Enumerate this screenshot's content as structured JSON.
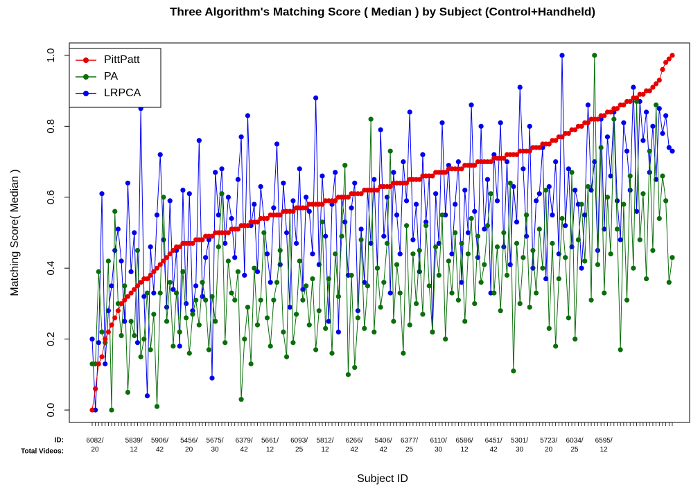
{
  "chart_data": {
    "type": "line",
    "title": "Three Algorithm's Matching Score ( Median ) by Subject  (Control+Handheld)",
    "x_label": "Subject ID",
    "y_label": "Matching Score( Median )",
    "category_header": [
      "ID:",
      "Total Videos:"
    ],
    "legend": "topleft",
    "ylim": [
      -0.035,
      1.035
    ],
    "yticks": [
      {
        "value": 0,
        "label": "0.0"
      },
      0.2,
      0.4,
      0.6,
      0.8,
      {
        "value": 1,
        "label": "1.0"
      }
    ],
    "categories": [
      "6082/\n20",
      null,
      null,
      null,
      null,
      null,
      null,
      null,
      null,
      null,
      null,
      null,
      "5839/\n12",
      null,
      null,
      null,
      null,
      null,
      null,
      null,
      "5906/\n42",
      null,
      null,
      null,
      null,
      null,
      null,
      null,
      null,
      "5456/\n20",
      null,
      null,
      null,
      null,
      null,
      null,
      null,
      "5675/\n30",
      null,
      null,
      null,
      null,
      null,
      null,
      null,
      null,
      "6379/\n42",
      null,
      null,
      null,
      null,
      null,
      null,
      null,
      "5661/\n12",
      null,
      null,
      null,
      null,
      null,
      null,
      null,
      null,
      "6093/\n25",
      null,
      null,
      null,
      null,
      null,
      null,
      null,
      "5812/\n12",
      null,
      null,
      null,
      null,
      null,
      null,
      null,
      null,
      "6266/\n42",
      null,
      null,
      null,
      null,
      null,
      null,
      null,
      null,
      "5406/\n42",
      null,
      null,
      null,
      null,
      null,
      null,
      null,
      "6377/\n25",
      null,
      null,
      null,
      null,
      null,
      null,
      null,
      null,
      "6110/\n30",
      null,
      null,
      null,
      null,
      null,
      null,
      null,
      "6586/\n12",
      null,
      null,
      null,
      null,
      null,
      null,
      null,
      null,
      "6451/\n42",
      null,
      null,
      null,
      null,
      null,
      null,
      null,
      "5301/\n30",
      null,
      null,
      null,
      null,
      null,
      null,
      null,
      null,
      "5723/\n20",
      null,
      null,
      null,
      null,
      null,
      null,
      null,
      "6034/\n25",
      null,
      null,
      null,
      null,
      null,
      null,
      null,
      null,
      "6595/\n12",
      null,
      null,
      null,
      null,
      null,
      null,
      null,
      null,
      null,
      null,
      null,
      null,
      null,
      null,
      null,
      null,
      null,
      null,
      null,
      null,
      null,
      null
    ],
    "series": [
      {
        "name": "PittPatt",
        "color": "#e60000",
        "values": [
          0,
          0.06,
          0.13,
          0.15,
          0.2,
          0.22,
          0.24,
          0.26,
          0.28,
          0.3,
          0.31,
          0.32,
          0.33,
          0.34,
          0.35,
          0.36,
          0.37,
          0.37,
          0.38,
          0.39,
          0.4,
          0.41,
          0.42,
          0.43,
          0.44,
          0.45,
          0.46,
          0.46,
          0.47,
          0.47,
          0.47,
          0.47,
          0.48,
          0.48,
          0.48,
          0.49,
          0.49,
          0.49,
          0.5,
          0.5,
          0.5,
          0.5,
          0.5,
          0.51,
          0.51,
          0.51,
          0.52,
          0.52,
          0.52,
          0.53,
          0.53,
          0.53,
          0.54,
          0.54,
          0.54,
          0.55,
          0.55,
          0.55,
          0.55,
          0.56,
          0.56,
          0.56,
          0.56,
          0.57,
          0.57,
          0.57,
          0.57,
          0.58,
          0.58,
          0.58,
          0.58,
          0.58,
          0.59,
          0.59,
          0.59,
          0.59,
          0.6,
          0.6,
          0.6,
          0.6,
          0.61,
          0.61,
          0.61,
          0.61,
          0.62,
          0.62,
          0.62,
          0.62,
          0.62,
          0.63,
          0.63,
          0.63,
          0.63,
          0.64,
          0.64,
          0.64,
          0.64,
          0.64,
          0.65,
          0.65,
          0.65,
          0.65,
          0.66,
          0.66,
          0.66,
          0.66,
          0.67,
          0.67,
          0.67,
          0.67,
          0.68,
          0.68,
          0.68,
          0.68,
          0.68,
          0.69,
          0.69,
          0.69,
          0.69,
          0.7,
          0.7,
          0.7,
          0.7,
          0.7,
          0.71,
          0.71,
          0.71,
          0.71,
          0.72,
          0.72,
          0.72,
          0.72,
          0.73,
          0.73,
          0.73,
          0.73,
          0.74,
          0.74,
          0.74,
          0.75,
          0.75,
          0.75,
          0.76,
          0.76,
          0.77,
          0.77,
          0.78,
          0.78,
          0.79,
          0.79,
          0.8,
          0.8,
          0.81,
          0.81,
          0.82,
          0.82,
          0.82,
          0.83,
          0.83,
          0.84,
          0.84,
          0.85,
          0.85,
          0.86,
          0.86,
          0.87,
          0.87,
          0.88,
          0.88,
          0.89,
          0.89,
          0.9,
          0.9,
          0.91,
          0.92,
          0.93,
          0.96,
          0.98,
          0.99,
          1.0
        ]
      },
      {
        "name": "PA",
        "color": "#0a6e0a",
        "values": [
          0.13,
          0.13,
          0.39,
          0.22,
          0.19,
          0.42,
          0.0,
          0.56,
          0.3,
          0.21,
          0.35,
          0.05,
          0.25,
          0.21,
          0.45,
          0.15,
          0.2,
          0.33,
          0.17,
          0.27,
          0.01,
          0.33,
          0.6,
          0.25,
          0.36,
          0.18,
          0.33,
          0.22,
          0.39,
          0.26,
          0.16,
          0.27,
          0.31,
          0.24,
          0.36,
          0.31,
          0.17,
          0.32,
          0.25,
          0.46,
          0.61,
          0.19,
          0.42,
          0.33,
          0.31,
          0.39,
          0.03,
          0.2,
          0.29,
          0.13,
          0.4,
          0.24,
          0.31,
          0.5,
          0.26,
          0.18,
          0.31,
          0.36,
          0.45,
          0.22,
          0.15,
          0.56,
          0.19,
          0.27,
          0.42,
          0.31,
          0.35,
          0.24,
          0.37,
          0.17,
          0.28,
          0.53,
          0.23,
          0.37,
          0.16,
          0.44,
          0.32,
          0.49,
          0.69,
          0.1,
          0.38,
          0.12,
          0.26,
          0.48,
          0.23,
          0.35,
          0.82,
          0.22,
          0.4,
          0.29,
          0.36,
          0.47,
          0.73,
          0.25,
          0.41,
          0.33,
          0.16,
          0.52,
          0.24,
          0.44,
          0.3,
          0.45,
          0.27,
          0.52,
          0.35,
          0.22,
          0.46,
          0.38,
          0.55,
          0.2,
          0.42,
          0.33,
          0.5,
          0.31,
          0.47,
          0.25,
          0.44,
          0.54,
          0.3,
          0.49,
          0.36,
          0.41,
          0.52,
          0.61,
          0.33,
          0.46,
          0.28,
          0.5,
          0.38,
          0.64,
          0.11,
          0.47,
          0.3,
          0.43,
          0.55,
          0.29,
          0.45,
          0.33,
          0.51,
          0.4,
          0.62,
          0.23,
          0.47,
          0.18,
          0.37,
          0.54,
          0.43,
          0.26,
          0.67,
          0.2,
          0.48,
          0.58,
          0.42,
          0.63,
          0.31,
          1.0,
          0.41,
          0.74,
          0.33,
          0.6,
          0.44,
          0.82,
          0.51,
          0.17,
          0.58,
          0.31,
          0.66,
          0.4,
          0.87,
          0.48,
          0.61,
          0.37,
          0.73,
          0.45,
          0.86,
          0.54,
          0.66,
          0.59,
          0.36,
          0.43
        ]
      },
      {
        "name": "LRPCA",
        "color": "#0000ee",
        "values": [
          0.2,
          0.0,
          0.19,
          0.61,
          0.13,
          0.28,
          0.35,
          0.45,
          0.51,
          0.42,
          0.25,
          0.64,
          0.39,
          0.5,
          0.19,
          0.85,
          0.32,
          0.04,
          0.46,
          0.33,
          0.55,
          0.72,
          0.48,
          0.29,
          0.59,
          0.34,
          0.45,
          0.18,
          0.62,
          0.3,
          0.61,
          0.28,
          0.35,
          0.76,
          0.32,
          0.43,
          0.48,
          0.09,
          0.67,
          0.55,
          0.68,
          0.47,
          0.6,
          0.54,
          0.43,
          0.65,
          0.77,
          0.38,
          0.83,
          0.52,
          0.58,
          0.39,
          0.63,
          0.54,
          0.44,
          0.36,
          0.57,
          0.75,
          0.41,
          0.64,
          0.5,
          0.29,
          0.59,
          0.47,
          0.68,
          0.34,
          0.6,
          0.56,
          0.44,
          0.88,
          0.41,
          0.66,
          0.49,
          0.25,
          0.58,
          0.67,
          0.22,
          0.6,
          0.53,
          0.38,
          0.57,
          0.64,
          0.28,
          0.51,
          0.36,
          0.62,
          0.47,
          0.65,
          0.4,
          0.79,
          0.49,
          0.6,
          0.33,
          0.67,
          0.55,
          0.44,
          0.7,
          0.59,
          0.84,
          0.48,
          0.58,
          0.39,
          0.72,
          0.53,
          0.66,
          0.22,
          0.61,
          0.47,
          0.81,
          0.55,
          0.69,
          0.44,
          0.58,
          0.7,
          0.36,
          0.62,
          0.5,
          0.86,
          0.56,
          0.43,
          0.8,
          0.51,
          0.65,
          0.33,
          0.72,
          0.59,
          0.81,
          0.46,
          0.7,
          0.41,
          0.63,
          0.53,
          0.91,
          0.68,
          0.49,
          0.8,
          0.4,
          0.59,
          0.61,
          0.74,
          0.37,
          0.63,
          0.55,
          0.7,
          0.44,
          1.0,
          0.52,
          0.68,
          0.46,
          0.62,
          0.58,
          0.4,
          0.55,
          0.86,
          0.62,
          0.7,
          0.45,
          0.82,
          0.51,
          0.77,
          0.66,
          0.84,
          0.59,
          0.48,
          0.81,
          0.73,
          0.62,
          0.91,
          0.56,
          0.87,
          0.76,
          0.84,
          0.67,
          0.8,
          0.65,
          0.85,
          0.78,
          0.83,
          0.74,
          0.73
        ]
      }
    ]
  }
}
